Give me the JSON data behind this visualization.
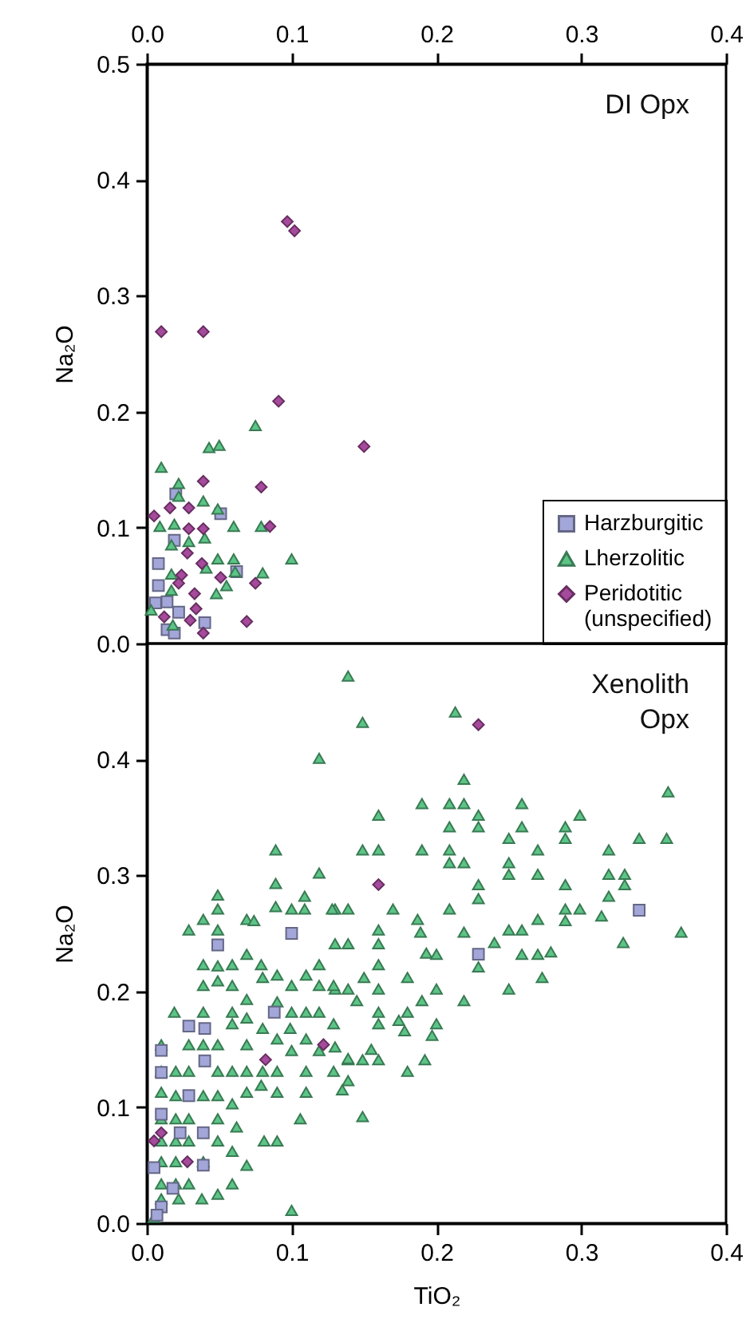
{
  "chart_data": [
    {
      "type": "scatter",
      "ylabel": "Na₂O",
      "annotations": [
        "DI Opx"
      ],
      "xlim": [
        0,
        0.4
      ],
      "xticks": [
        {
          "value": 0,
          "label": "0.0"
        },
        0.1,
        0.2,
        0.3,
        0.4
      ],
      "ylim": [
        0,
        0.5
      ],
      "yticks": [
        {
          "value": 0,
          "label": "0.0"
        },
        0.1,
        0.2,
        0.3,
        0.4,
        0.5
      ],
      "grid": false,
      "legend": "bottom right",
      "tick_labels": "xy",
      "series": [
        {
          "name": "Harzburgitic",
          "color": "#a3a6d8",
          "marker": "square",
          "x": [
            0.02,
            0.051,
            0.019,
            0.062,
            0.008,
            0.006,
            0.014,
            0.022,
            0.04,
            0.014,
            0.019,
            0.008
          ],
          "values": [
            0.129,
            0.112,
            0.089,
            0.062,
            0.05,
            0.035,
            0.036,
            0.027,
            0.018,
            0.012,
            0.009,
            0.069
          ]
        },
        {
          "name": "Lherzolitic",
          "color": "#5cc486",
          "marker": "triangle",
          "x": [
            0.075,
            0.043,
            0.05,
            0.01,
            0.022,
            0.022,
            0.039,
            0.049,
            0.06,
            0.079,
            0.009,
            0.019,
            0.04,
            0.017,
            0.029,
            0.049,
            0.06,
            0.1,
            0.041,
            0.061,
            0.08,
            0.017,
            0.055,
            0.048,
            0.017,
            0.003,
            0.018
          ],
          "values": [
            0.188,
            0.169,
            0.171,
            0.152,
            0.138,
            0.127,
            0.123,
            0.116,
            0.101,
            0.101,
            0.101,
            0.103,
            0.091,
            0.085,
            0.088,
            0.073,
            0.073,
            0.073,
            0.065,
            0.062,
            0.061,
            0.06,
            0.05,
            0.043,
            0.046,
            0.029,
            0.016
          ]
        },
        {
          "name": "Peridotitic\n(unspecified)",
          "color": "#a64a9c",
          "marker": "diamond",
          "x": [
            0.097,
            0.102,
            0.01,
            0.039,
            0.091,
            0.15,
            0.039,
            0.079,
            0.085,
            0.075,
            0.069,
            0.039,
            0.016,
            0.029,
            0.039,
            0.029,
            0.028,
            0.038,
            0.024,
            0.033,
            0.034,
            0.03,
            0.051,
            0.012,
            0.005,
            0.022
          ],
          "values": [
            0.364,
            0.356,
            0.269,
            0.269,
            0.209,
            0.17,
            0.14,
            0.135,
            0.101,
            0.052,
            0.019,
            0.009,
            0.117,
            0.117,
            0.099,
            0.099,
            0.078,
            0.069,
            0.059,
            0.043,
            0.03,
            0.02,
            0.057,
            0.023,
            0.11,
            0.052
          ]
        }
      ]
    },
    {
      "type": "scatter",
      "xlabel": "TiO₂",
      "ylabel": "Na₂O",
      "annotations": [
        "Xenolith\nOpx"
      ],
      "xlim": [
        0,
        0.4
      ],
      "xticks": [
        {
          "value": 0,
          "label": "0.0"
        },
        0.1,
        0.2,
        0.3,
        0.4
      ],
      "ylim": [
        0,
        0.5
      ],
      "yticks": [
        {
          "value": 0,
          "label": "0.0"
        },
        0.1,
        0.2,
        0.3,
        0.4
      ],
      "grid": false,
      "series": [
        {
          "color": "#5cc486",
          "marker": "triangle",
          "x": [
            0.139,
            0.149,
            0.213,
            0.219,
            0.16,
            0.19,
            0.209,
            0.219,
            0.229,
            0.259,
            0.299,
            0.36,
            0.209,
            0.229,
            0.25,
            0.259,
            0.289,
            0.289,
            0.34,
            0.359,
            0.149,
            0.16,
            0.19,
            0.209,
            0.27,
            0.319,
            0.209,
            0.219,
            0.25,
            0.25,
            0.27,
            0.319,
            0.33,
            0.229,
            0.289,
            0.33,
            0.229,
            0.319,
            0.13,
            0.139,
            0.17,
            0.209,
            0.289,
            0.299,
            0.314,
            0.289,
            0.16,
            0.187,
            0.189,
            0.219,
            0.25,
            0.259,
            0.27,
            0.369,
            0.329,
            0.24,
            0.16,
            0.13,
            0.139,
            0.193,
            0.2,
            0.259,
            0.27,
            0.279,
            0.229,
            0.16,
            0.18,
            0.15,
            0.273,
            0.25,
            0.2,
            0.16,
            0.139,
            0.13,
            0.19,
            0.219,
            0.145,
            0.16,
            0.18,
            0.174,
            0.16,
            0.2,
            0.178,
            0.197,
            0.13,
            0.155,
            0.16,
            0.149,
            0.139,
            0.192,
            0.18,
            0.139,
            0.135,
            0.149,
            0.119,
            0.089,
            0.119,
            0.089,
            0.089,
            0.109,
            0.109,
            0.1,
            0.128,
            0.049,
            0.049,
            0.039,
            0.029,
            0.069,
            0.074,
            0.049,
            0.069,
            0.059,
            0.039,
            0.049,
            0.079,
            0.09,
            0.119,
            0.11,
            0.039,
            0.049,
            0.059,
            0.069,
            0.08,
            0.1,
            0.119,
            0.129,
            0.019,
            0.039,
            0.059,
            0.069,
            0.09,
            0.1,
            0.11,
            0.119,
            0.129,
            0.059,
            0.08,
            0.099,
            0.11,
            0.09,
            0.049,
            0.069,
            0.01,
            0.029,
            0.039,
            0.1,
            0.119,
            0.139,
            0.01,
            0.02,
            0.029,
            0.049,
            0.059,
            0.069,
            0.08,
            0.09,
            0.11,
            0.129,
            0.079,
            0.069,
            0.09,
            0.11,
            0.01,
            0.02,
            0.039,
            0.049,
            0.059,
            0.106,
            0.01,
            0.02,
            0.029,
            0.049,
            0.062,
            0.01,
            0.02,
            0.029,
            0.049,
            0.081,
            0.09,
            0.059,
            0.01,
            0.02,
            0.039,
            0.069,
            0.01,
            0.02,
            0.029,
            0.059,
            0.01,
            0.022,
            0.038,
            0.049,
            0.1,
            0.005
          ],
          "values": [
            0.472,
            0.432,
            0.441,
            0.383,
            0.352,
            0.362,
            0.362,
            0.362,
            0.352,
            0.362,
            0.352,
            0.372,
            0.342,
            0.342,
            0.332,
            0.342,
            0.342,
            0.332,
            0.332,
            0.332,
            0.322,
            0.322,
            0.322,
            0.322,
            0.322,
            0.322,
            0.311,
            0.311,
            0.311,
            0.301,
            0.301,
            0.301,
            0.301,
            0.292,
            0.292,
            0.292,
            0.28,
            0.282,
            0.271,
            0.271,
            0.271,
            0.271,
            0.271,
            0.271,
            0.265,
            0.261,
            0.253,
            0.262,
            0.251,
            0.251,
            0.253,
            0.253,
            0.262,
            0.251,
            0.242,
            0.242,
            0.241,
            0.241,
            0.241,
            0.233,
            0.232,
            0.232,
            0.232,
            0.234,
            0.221,
            0.223,
            0.212,
            0.212,
            0.212,
            0.202,
            0.202,
            0.202,
            0.202,
            0.202,
            0.192,
            0.192,
            0.192,
            0.182,
            0.182,
            0.175,
            0.172,
            0.172,
            0.166,
            0.162,
            0.152,
            0.15,
            0.141,
            0.141,
            0.141,
            0.141,
            0.131,
            0.123,
            0.115,
            0.092,
            0.401,
            0.322,
            0.302,
            0.293,
            0.273,
            0.282,
            0.271,
            0.271,
            0.271,
            0.283,
            0.271,
            0.262,
            0.253,
            0.262,
            0.261,
            0.253,
            0.232,
            0.223,
            0.223,
            0.222,
            0.223,
            0.214,
            0.223,
            0.214,
            0.205,
            0.209,
            0.205,
            0.193,
            0.212,
            0.205,
            0.205,
            0.205,
            0.182,
            0.182,
            0.182,
            0.177,
            0.191,
            0.182,
            0.182,
            0.182,
            0.172,
            0.172,
            0.168,
            0.168,
            0.159,
            0.159,
            0.154,
            0.154,
            0.154,
            0.154,
            0.154,
            0.149,
            0.149,
            0.142,
            0.131,
            0.131,
            0.131,
            0.131,
            0.131,
            0.131,
            0.131,
            0.131,
            0.131,
            0.131,
            0.119,
            0.113,
            0.113,
            0.113,
            0.113,
            0.11,
            0.11,
            0.11,
            0.103,
            0.09,
            0.09,
            0.09,
            0.09,
            0.09,
            0.083,
            0.071,
            0.071,
            0.071,
            0.071,
            0.071,
            0.071,
            0.062,
            0.053,
            0.053,
            0.053,
            0.05,
            0.034,
            0.034,
            0.034,
            0.034,
            0.021,
            0.021,
            0.021,
            0.025,
            0.011,
            0.005
          ]
        },
        {
          "color": "#a3a6d8",
          "marker": "square",
          "x": [
            0.34,
            0.229,
            0.049,
            0.1,
            0.029,
            0.04,
            0.01,
            0.04,
            0.01,
            0.029,
            0.01,
            0.023,
            0.039,
            0.039,
            0.005,
            0.018,
            0.01,
            0.007,
            0.088
          ],
          "values": [
            0.27,
            0.232,
            0.24,
            0.25,
            0.17,
            0.168,
            0.149,
            0.14,
            0.13,
            0.11,
            0.094,
            0.078,
            0.078,
            0.05,
            0.048,
            0.03,
            0.014,
            0.007,
            0.182
          ]
        },
        {
          "color": "#a64a9c",
          "marker": "diamond",
          "x": [
            0.229,
            0.16,
            0.082,
            0.122,
            0.028,
            0.005,
            0.01
          ],
          "values": [
            0.43,
            0.292,
            0.141,
            0.154,
            0.053,
            0.071,
            0.078
          ]
        }
      ]
    }
  ]
}
